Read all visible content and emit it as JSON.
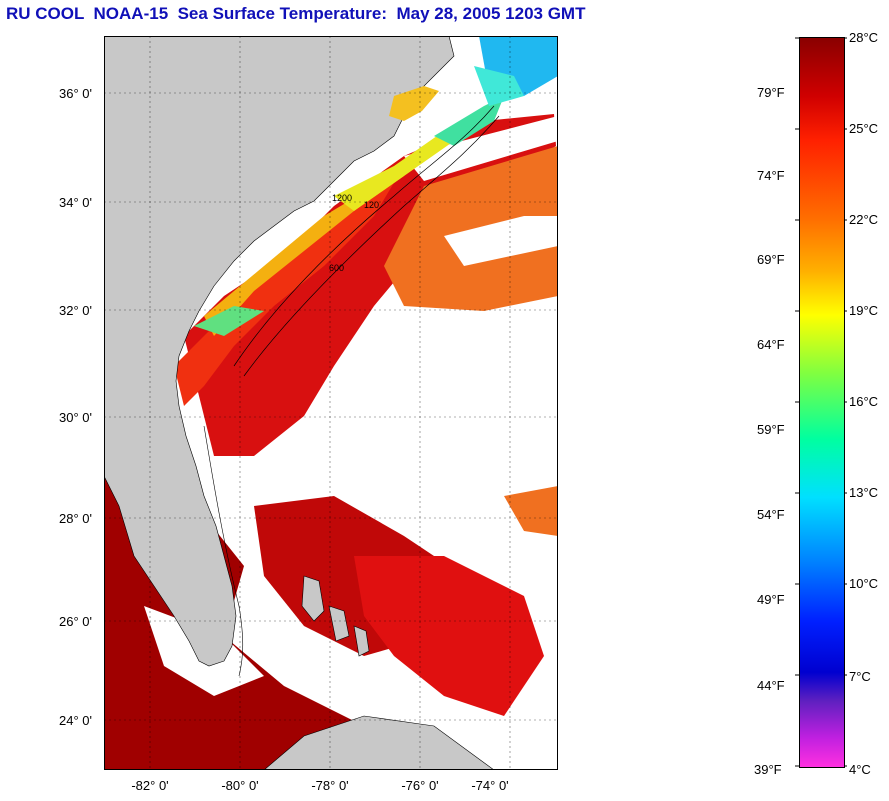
{
  "title": "RU COOL  NOAA-15  Sea Surface Temperature:  May 28, 2005 1203 GMT",
  "map": {
    "lat_labels": [
      "36° 0'",
      "34° 0'",
      "32° 0'",
      "30° 0'",
      "28° 0'",
      "26° 0'",
      "24° 0'"
    ],
    "lon_labels": [
      "-82° 0'",
      "-80° 0'",
      "-78° 0'",
      "-76° 0'",
      "-74° 0'"
    ],
    "lat_range": [
      23,
      37
    ],
    "lon_range": [
      -83,
      -73
    ],
    "isobath_labels": [
      "1200",
      "600",
      "120"
    ],
    "colors": {
      "land": "#c8c8c8",
      "cloud": "#ffffff",
      "gulf_warm": "#a00000",
      "stream": "#d81010",
      "shelf_warm": "#f03010",
      "offshore": "#f07020",
      "shelf_mid": "#f4b010",
      "shelf_cool": "#e8e820",
      "coastal_cold": "#40e0a0",
      "north_cold": "#20b8f0"
    }
  },
  "colorbar": {
    "celsius_labels": [
      "28°C",
      "25°C",
      "22°C",
      "19°C",
      "16°C",
      "13°C",
      "10°C",
      "7°C",
      "4°C"
    ],
    "fahrenheit_labels": [
      "79°F",
      "74°F",
      "69°F",
      "64°F",
      "59°F",
      "54°F",
      "49°F",
      "44°F",
      "39°F"
    ],
    "range_c": [
      4,
      28
    ],
    "gradient_stops": [
      "#8a0000",
      "#d00000",
      "#ff2000",
      "#ff7000",
      "#ffb000",
      "#ffff00",
      "#80ff40",
      "#00ffa0",
      "#00e0ff",
      "#0080ff",
      "#0020ff",
      "#0000d0",
      "#6020c0",
      "#c020e0",
      "#ff30e0"
    ]
  }
}
